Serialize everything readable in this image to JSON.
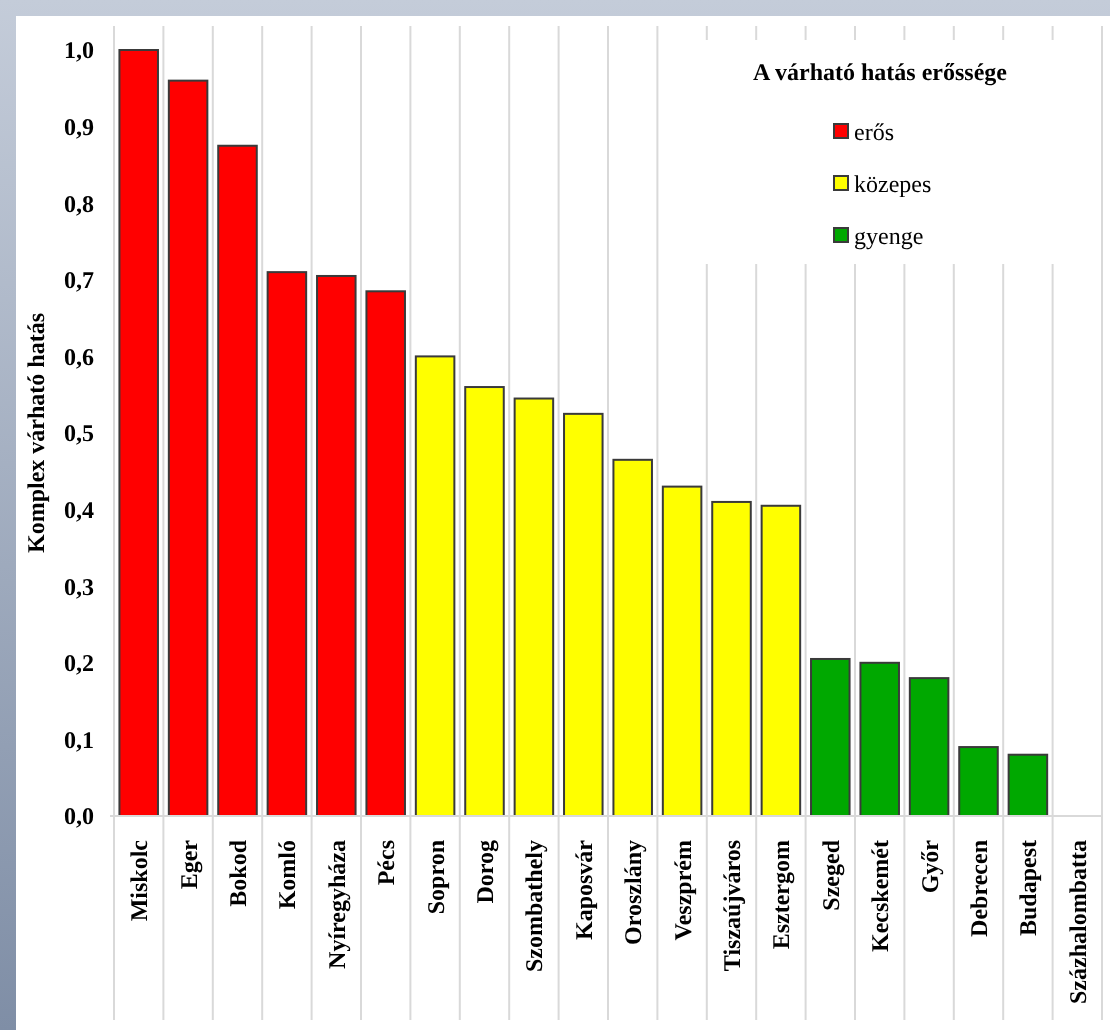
{
  "chart_data": {
    "type": "bar",
    "ylabel": "Komplex várható hatás",
    "legend_title": "A várható hatás erőssége",
    "legend": "top right",
    "grid": "x",
    "categories": [
      "Miskolc",
      "Eger",
      "Bokod",
      "Komló",
      "Nyíregyháza",
      "Pécs",
      "Sopron",
      "Dorog",
      "Szombathely",
      "Kaposvár",
      "Oroszlány",
      "Veszprém",
      "Tiszaújváros",
      "Esztergom",
      "Szeged",
      "Kecskemét",
      "Győr",
      "Debrecen",
      "Budapest",
      "Százhalombatta"
    ],
    "series": [
      {
        "name": "erős",
        "color": "#ff0000",
        "values": [
          1.0,
          0.96,
          0.875,
          0.71,
          0.705,
          0.685,
          null,
          null,
          null,
          null,
          null,
          null,
          null,
          null,
          null,
          null,
          null,
          null,
          null,
          null
        ]
      },
      {
        "name": "közepes",
        "color": "#ffff00",
        "values": [
          null,
          null,
          null,
          null,
          null,
          null,
          0.6,
          0.56,
          0.545,
          0.525,
          0.465,
          0.43,
          0.41,
          0.405,
          null,
          null,
          null,
          null,
          null,
          null
        ]
      },
      {
        "name": "gyenge",
        "color": "#00a800",
        "values": [
          null,
          null,
          null,
          null,
          null,
          null,
          null,
          null,
          null,
          null,
          null,
          null,
          null,
          null,
          0.205,
          0.2,
          0.18,
          0.09,
          0.08,
          0
        ]
      }
    ],
    "ylim": [
      0,
      1.0
    ],
    "yticks": [
      {
        "value": 0,
        "label": "0,0"
      },
      {
        "value": 0.1,
        "label": "0,1"
      },
      {
        "value": 0.2,
        "label": "0,2"
      },
      {
        "value": 0.3,
        "label": "0,3"
      },
      {
        "value": 0.4,
        "label": "0,4"
      },
      {
        "value": 0.5,
        "label": "0,5"
      },
      {
        "value": 0.6,
        "label": "0,6"
      },
      {
        "value": 0.7,
        "label": "0,7"
      },
      {
        "value": 0.8,
        "label": "0,8"
      },
      {
        "value": 0.9,
        "label": "0,9"
      },
      {
        "value": 1.0,
        "label": "1,0"
      }
    ]
  }
}
